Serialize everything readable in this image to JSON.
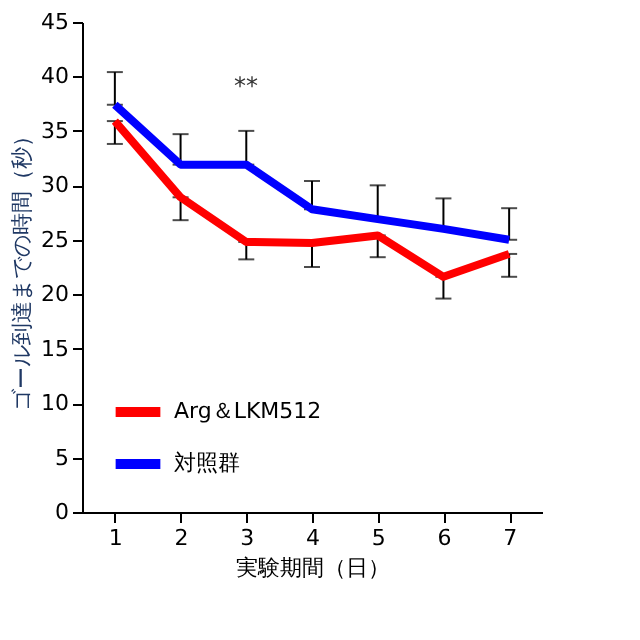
{
  "chart_data": {
    "type": "line",
    "xlabel": "実験期間（日）",
    "ylabel": "ゴール到達までの時間（秒）",
    "categories": [
      "1",
      "2",
      "3",
      "4",
      "5",
      "6",
      "7"
    ],
    "series": [
      {
        "name": "Arg＆LKM512",
        "color": "#ff0000",
        "values": [
          35.9,
          28.9,
          24.8,
          24.7,
          25.4,
          21.6,
          23.7
        ],
        "errors": [
          [
            33.8,
            35.9
          ],
          [
            26.8,
            28.9
          ],
          [
            23.2,
            24.8
          ],
          [
            22.5,
            24.7
          ],
          [
            23.4,
            25.4
          ],
          [
            19.6,
            21.6
          ],
          [
            21.6,
            23.7
          ]
        ]
      },
      {
        "name": "対照群",
        "color": "#0000ff",
        "values": [
          37.4,
          31.9,
          31.9,
          27.8,
          26.9,
          26.0,
          25.0
        ],
        "errors": [
          [
            37.4,
            40.4
          ],
          [
            31.9,
            34.7
          ],
          [
            31.9,
            35.0
          ],
          [
            27.8,
            30.4
          ],
          [
            26.9,
            30.0
          ],
          [
            26.0,
            28.8
          ],
          [
            25.0,
            27.9
          ]
        ]
      }
    ],
    "ylim": [
      0,
      45
    ],
    "yticks": [
      0,
      5,
      10,
      15,
      20,
      25,
      30,
      35,
      40,
      45
    ],
    "annotations": [
      "**"
    ],
    "legend": "bottom left",
    "grid": false,
    "marker": "none",
    "line_style": "solid"
  }
}
